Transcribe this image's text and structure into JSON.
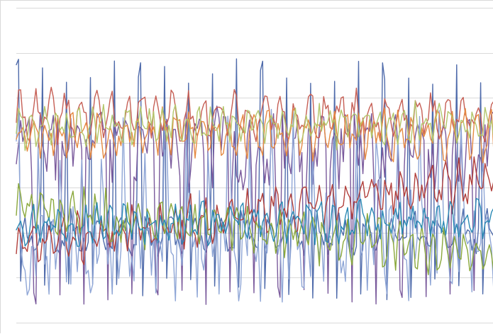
{
  "chart_data": {
    "type": "line",
    "title": "",
    "xlabel": "",
    "ylabel": "",
    "ylim": [
      0,
      7
    ],
    "grid": true,
    "legend": "none",
    "n_points": 220,
    "series": [
      {
        "color": "#4f6bab",
        "base": 2.0,
        "trend": 0.0,
        "amp": 1.6,
        "noise": 0.25,
        "spike": 5.9,
        "period": 11.2,
        "seed": 11,
        "kind": "spiky"
      },
      {
        "color": "#7a5a9c",
        "base": 3.9,
        "trend": -0.1,
        "amp": 1.4,
        "noise": 0.35,
        "spike": 4.4,
        "period": 11.2,
        "seed": 23,
        "kind": "spiky2"
      },
      {
        "color": "#8fa6d6",
        "base": 1.9,
        "trend": 0.2,
        "amp": 1.2,
        "noise": 0.5,
        "spike": 4.8,
        "period": 9.7,
        "seed": 37,
        "kind": "spiky3"
      },
      {
        "color": "#c65f55",
        "base": 4.6,
        "trend": 0.0,
        "amp": 0.35,
        "noise": 0.3,
        "spike": 0,
        "period": 7.0,
        "seed": 41,
        "kind": "band"
      },
      {
        "color": "#e58a43",
        "base": 4.25,
        "trend": -0.1,
        "amp": 0.3,
        "noise": 0.35,
        "spike": 0,
        "period": 6.0,
        "seed": 53,
        "kind": "band"
      },
      {
        "color": "#b3c66b",
        "base": 4.35,
        "trend": 0.05,
        "amp": 0.25,
        "noise": 0.3,
        "spike": 0,
        "period": 5.5,
        "seed": 61,
        "kind": "band"
      },
      {
        "color": "#b13f3b",
        "base": 1.7,
        "trend": 1.5,
        "amp": 0.3,
        "noise": 0.35,
        "spike": 0,
        "period": 6.5,
        "seed": 71,
        "kind": "band"
      },
      {
        "color": "#8aa83c",
        "base": 2.55,
        "trend": -1.0,
        "amp": 0.35,
        "noise": 0.35,
        "spike": 0,
        "period": 5.0,
        "seed": 83,
        "kind": "band"
      },
      {
        "color": "#2b8ab5",
        "base": 2.2,
        "trend": 0.05,
        "amp": 0.25,
        "noise": 0.3,
        "spike": 0,
        "period": 6.0,
        "seed": 97,
        "kind": "band"
      }
    ]
  }
}
